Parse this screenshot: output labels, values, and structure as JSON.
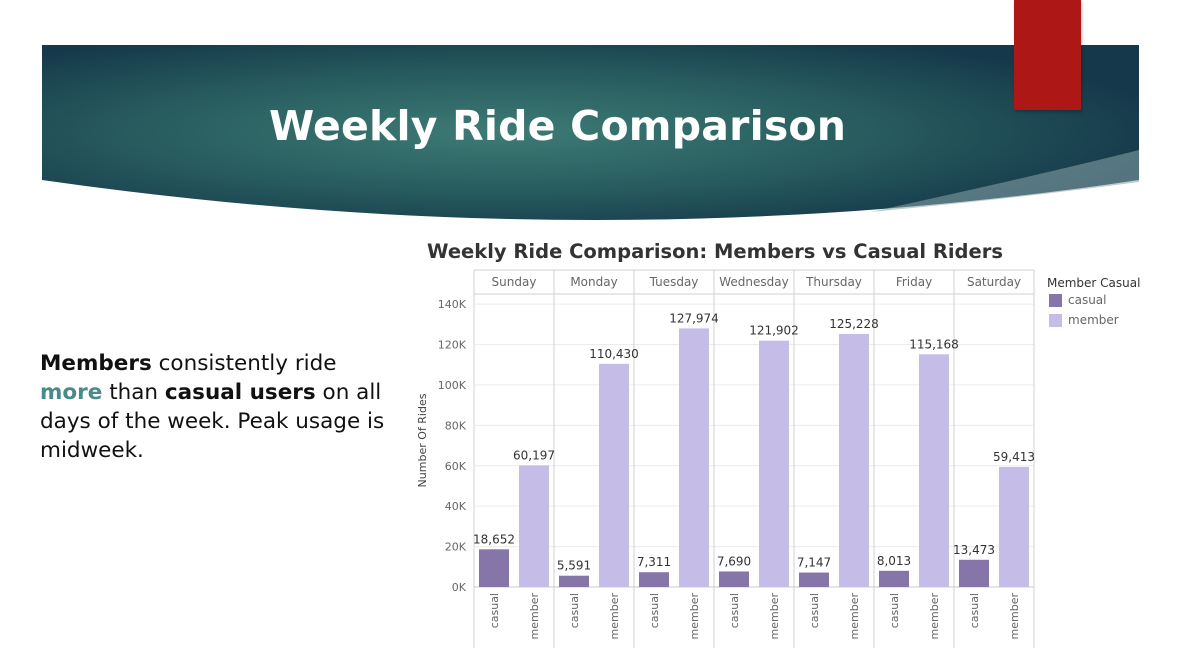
{
  "slide": {
    "title": "Weekly Ride Comparison",
    "body": {
      "members_bold": "Members",
      "text1": " consistently ride ",
      "more": "more",
      "text2": " than ",
      "casual_bold": "casual users",
      "text3": " on all days of the week. Peak usage is midweek."
    },
    "colors": {
      "banner_dark": "#15384a",
      "banner_mid": "#2f6b68",
      "red_accent": "#ad1716",
      "highlight": "#4a8a8a"
    }
  },
  "chart_data": {
    "type": "bar",
    "title": "Weekly Ride Comparison: Members vs Casual Riders",
    "ylabel": "Number Of Rides",
    "xlabel": "",
    "ylim": [
      0,
      145000
    ],
    "yticks": [
      0,
      20000,
      40000,
      60000,
      80000,
      100000,
      120000,
      140000
    ],
    "ytick_labels": [
      "0K",
      "20K",
      "40K",
      "60K",
      "80K",
      "100K",
      "120K",
      "140K"
    ],
    "categories": [
      "Sunday",
      "Monday",
      "Tuesday",
      "Wednesday",
      "Thursday",
      "Friday",
      "Saturday"
    ],
    "subcategories": [
      "casual",
      "member"
    ],
    "series": [
      {
        "name": "casual",
        "color": "#8675a9",
        "values": [
          18652,
          5591,
          7311,
          7690,
          7147,
          8013,
          13473
        ]
      },
      {
        "name": "member",
        "color": "#c5bde8",
        "values": [
          60197,
          110430,
          127974,
          121902,
          125228,
          115168,
          59413
        ]
      }
    ],
    "data_labels": {
      "casual": [
        "18,652",
        "5,591",
        "7,311",
        "7,690",
        "7,147",
        "8,013",
        "13,473"
      ],
      "member": [
        "60,197",
        "110,430",
        "127,974",
        "121,902",
        "125,228",
        "115,168",
        "59,413"
      ]
    },
    "legend": {
      "title": "Member Casual",
      "position": "right"
    },
    "grid": true
  }
}
